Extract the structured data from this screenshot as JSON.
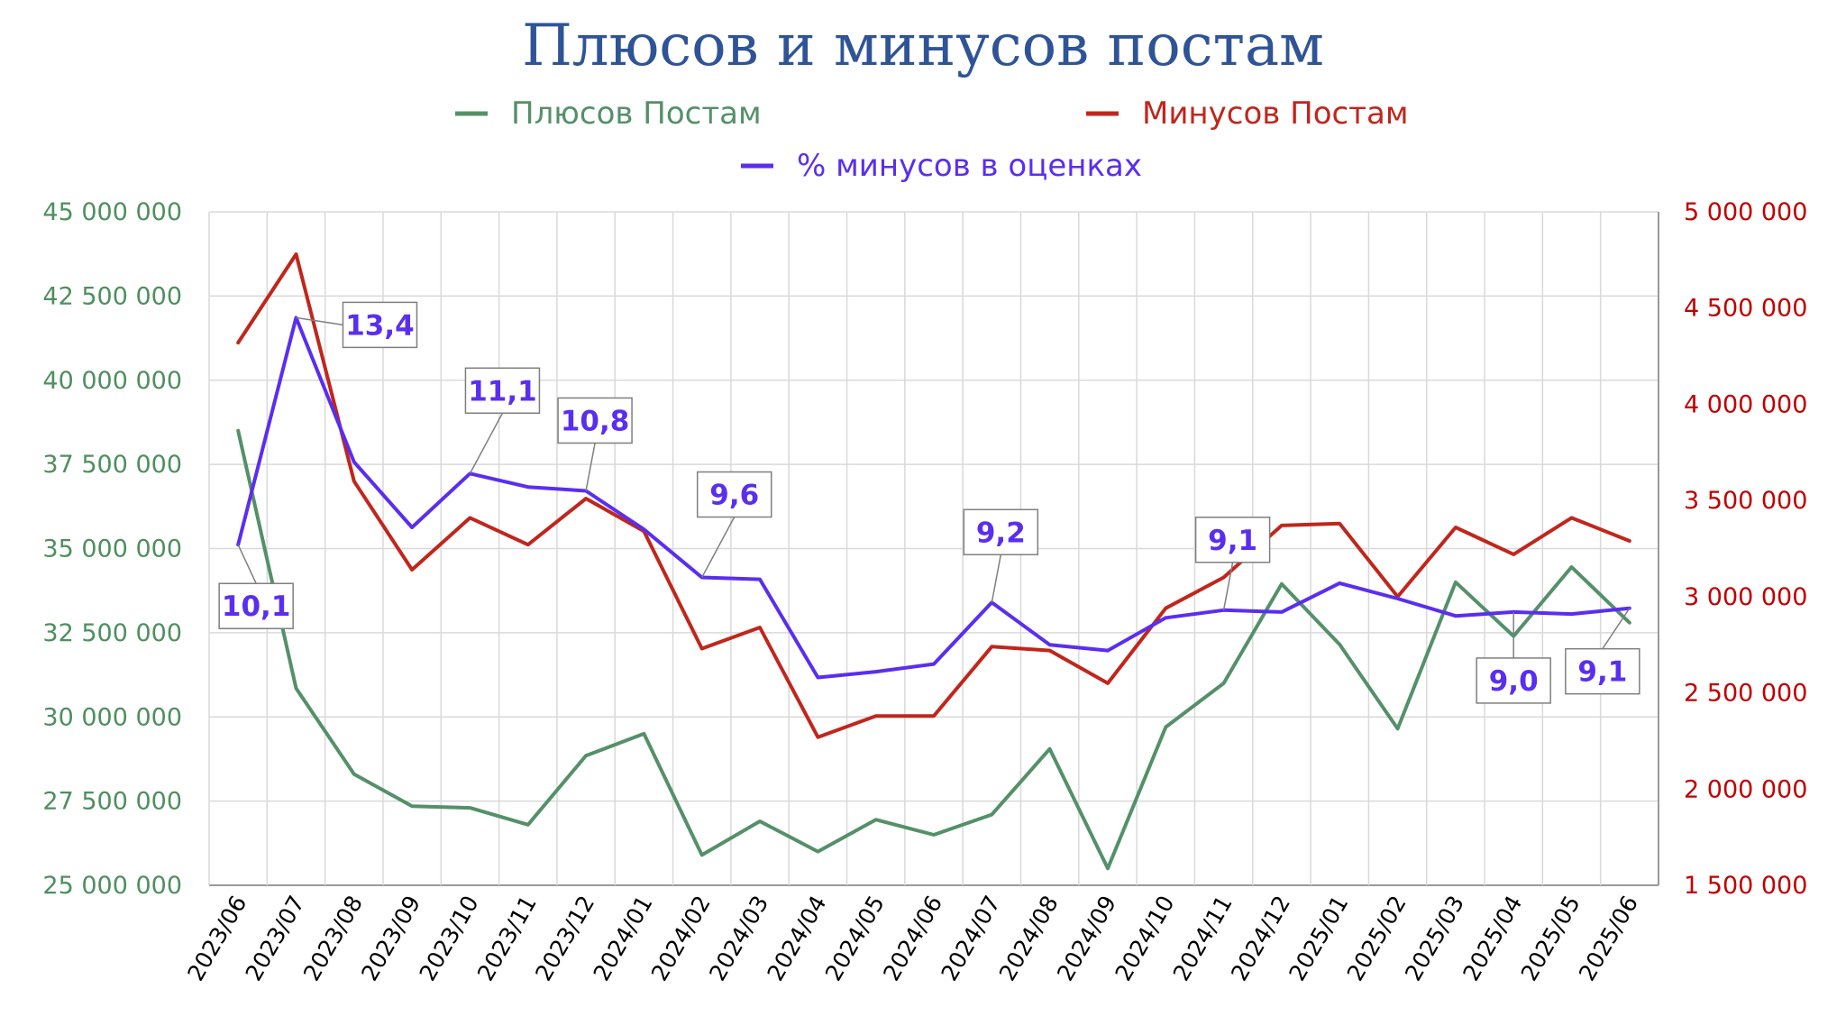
{
  "chart_data": {
    "type": "line",
    "title": "Плюсов и минусов постам",
    "x": [
      "2023/06",
      "2023/07",
      "2023/08",
      "2023/09",
      "2023/10",
      "2023/11",
      "2023/12",
      "2024/01",
      "2024/02",
      "2024/03",
      "2024/04",
      "2024/05",
      "2024/06",
      "2024/07",
      "2024/08",
      "2024/09",
      "2024/10",
      "2024/11",
      "2024/12",
      "2025/01",
      "2025/02",
      "2025/03",
      "2025/04",
      "2025/05",
      "2025/06"
    ],
    "y_left": {
      "range": [
        25000000,
        45000000
      ],
      "ticks": [
        25000000,
        27500000,
        30000000,
        32500000,
        35000000,
        37500000,
        40000000,
        42500000,
        45000000
      ],
      "tick_labels": [
        "25 000 000",
        "27 500 000",
        "30 000 000",
        "32 500 000",
        "35 000 000",
        "37 500 000",
        "40 000 000",
        "42 500 000",
        "45 000 000"
      ],
      "color": "#4e8f5e"
    },
    "y_right": {
      "range": [
        1500000,
        5000000
      ],
      "ticks": [
        1500000,
        2000000,
        2500000,
        3000000,
        3500000,
        4000000,
        4500000,
        5000000
      ],
      "tick_labels": [
        "1 500 000",
        "2 000 000",
        "2 500 000",
        "3 000 000",
        "3 500 000",
        "4 000 000",
        "4 500 000",
        "5 000 000"
      ],
      "color": "#c00000"
    },
    "series": [
      {
        "name": "Плюсов Постам",
        "axis": "left",
        "color": "#549069",
        "values": [
          38500000,
          30850000,
          28300000,
          27350000,
          27300000,
          26800000,
          28850000,
          29500000,
          25900000,
          26900000,
          26000000,
          26950000,
          26500000,
          27100000,
          29050000,
          25500000,
          29700000,
          31000000,
          33950000,
          32150000,
          29650000,
          34000000,
          32400000,
          34450000,
          32800000
        ]
      },
      {
        "name": "Минусов Постам",
        "axis": "right",
        "color": "#c0261c",
        "values": [
          4320000,
          4780000,
          3600000,
          3140000,
          3410000,
          3270000,
          3510000,
          3340000,
          2730000,
          2840000,
          2270000,
          2380000,
          2380000,
          2740000,
          2720000,
          2550000,
          2940000,
          3100000,
          3370000,
          3380000,
          3000000,
          3360000,
          3220000,
          3410000,
          3290000
        ]
      },
      {
        "name": "% минусов в оценках",
        "axis": "right",
        "color": "#5a2ef0",
        "values": [
          3270000,
          4450000,
          3700000,
          3360000,
          3640000,
          3570000,
          3550000,
          3350000,
          3100000,
          3090000,
          2580000,
          2610000,
          2650000,
          2970000,
          2750000,
          2720000,
          2890000,
          2930000,
          2920000,
          3070000,
          2990000,
          2900000,
          2920000,
          2910000,
          2940000
        ],
        "percent_values": [
          10.1,
          13.4,
          null,
          null,
          11.1,
          null,
          10.8,
          null,
          9.6,
          null,
          null,
          null,
          null,
          9.2,
          null,
          null,
          null,
          9.1,
          null,
          null,
          null,
          null,
          9.0,
          null,
          9.1
        ]
      }
    ],
    "callouts": [
      {
        "index": 0,
        "label": "10,1",
        "position": "below-right"
      },
      {
        "index": 1,
        "label": "13,4",
        "position": "right"
      },
      {
        "index": 4,
        "label": "11,1",
        "position": "above"
      },
      {
        "index": 6,
        "label": "10,8",
        "position": "above-left"
      },
      {
        "index": 8,
        "label": "9,6",
        "position": "above"
      },
      {
        "index": 13,
        "label": "9,2",
        "position": "above-left"
      },
      {
        "index": 17,
        "label": "9,1",
        "position": "above-left"
      },
      {
        "index": 22,
        "label": "9,0",
        "position": "below"
      },
      {
        "index": 24,
        "label": "9,1",
        "position": "below-left"
      }
    ],
    "grid": true,
    "legend_placement": "top"
  }
}
